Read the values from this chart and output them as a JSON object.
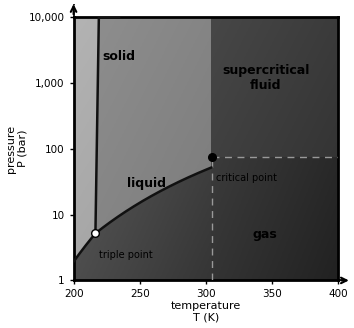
{
  "xlim": [
    200,
    400
  ],
  "ylim_log": [
    1,
    10000
  ],
  "xlabel1": "temperature",
  "xlabel2": "T (K)",
  "ylabel1": "pressure",
  "ylabel2": "P (bar)",
  "xticks": [
    200,
    250,
    300,
    350,
    400
  ],
  "yticks": [
    1,
    10,
    100,
    1000,
    10000
  ],
  "ytick_labels": [
    "1",
    "10",
    "100",
    "1,000",
    "10,000"
  ],
  "triple_point": [
    216.5,
    5.18
  ],
  "critical_point": [
    304.2,
    73.8
  ],
  "label_solid": "solid",
  "label_liquid": "liquid",
  "label_gas": "gas",
  "label_supercritical": "supercritical\nfluid",
  "label_triple": "triple point",
  "label_critical": "critical point",
  "bg_color": "#ffffff",
  "line_color": "#111111",
  "dashed_color": "#999999",
  "phase_label_fontsize": 9,
  "tick_fontsize": 7.5,
  "axis_label_fontsize": 8
}
